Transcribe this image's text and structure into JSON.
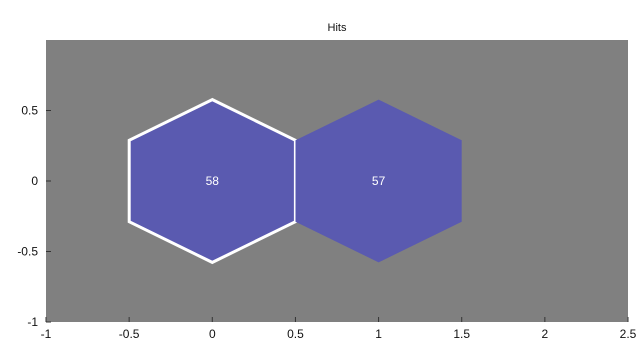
{
  "chart_data": {
    "type": "hexbin",
    "title": "Hits",
    "xlim": [
      -1,
      2.5
    ],
    "ylim": [
      -1,
      1
    ],
    "x_ticks": [
      -1,
      -0.5,
      0,
      0.5,
      1,
      1.5,
      2,
      2.5
    ],
    "x_tick_labels": [
      "-1",
      "-0.5",
      "0",
      "0.5",
      "1",
      "1.5",
      "2",
      "2.5"
    ],
    "y_ticks": [
      -1,
      -0.5,
      0,
      0.5
    ],
    "y_tick_labels": [
      "-1",
      "-0.5",
      "0",
      "0.5"
    ],
    "grid": false,
    "background_color": "#808080",
    "hex_fill_color": "#5a5ab0",
    "selected_outline_color": "#ffffff",
    "cells": [
      {
        "x": 0,
        "y": 0,
        "value": 58,
        "label": "58",
        "selected": true
      },
      {
        "x": 1,
        "y": 0,
        "value": 57,
        "label": "57",
        "selected": false
      }
    ]
  }
}
